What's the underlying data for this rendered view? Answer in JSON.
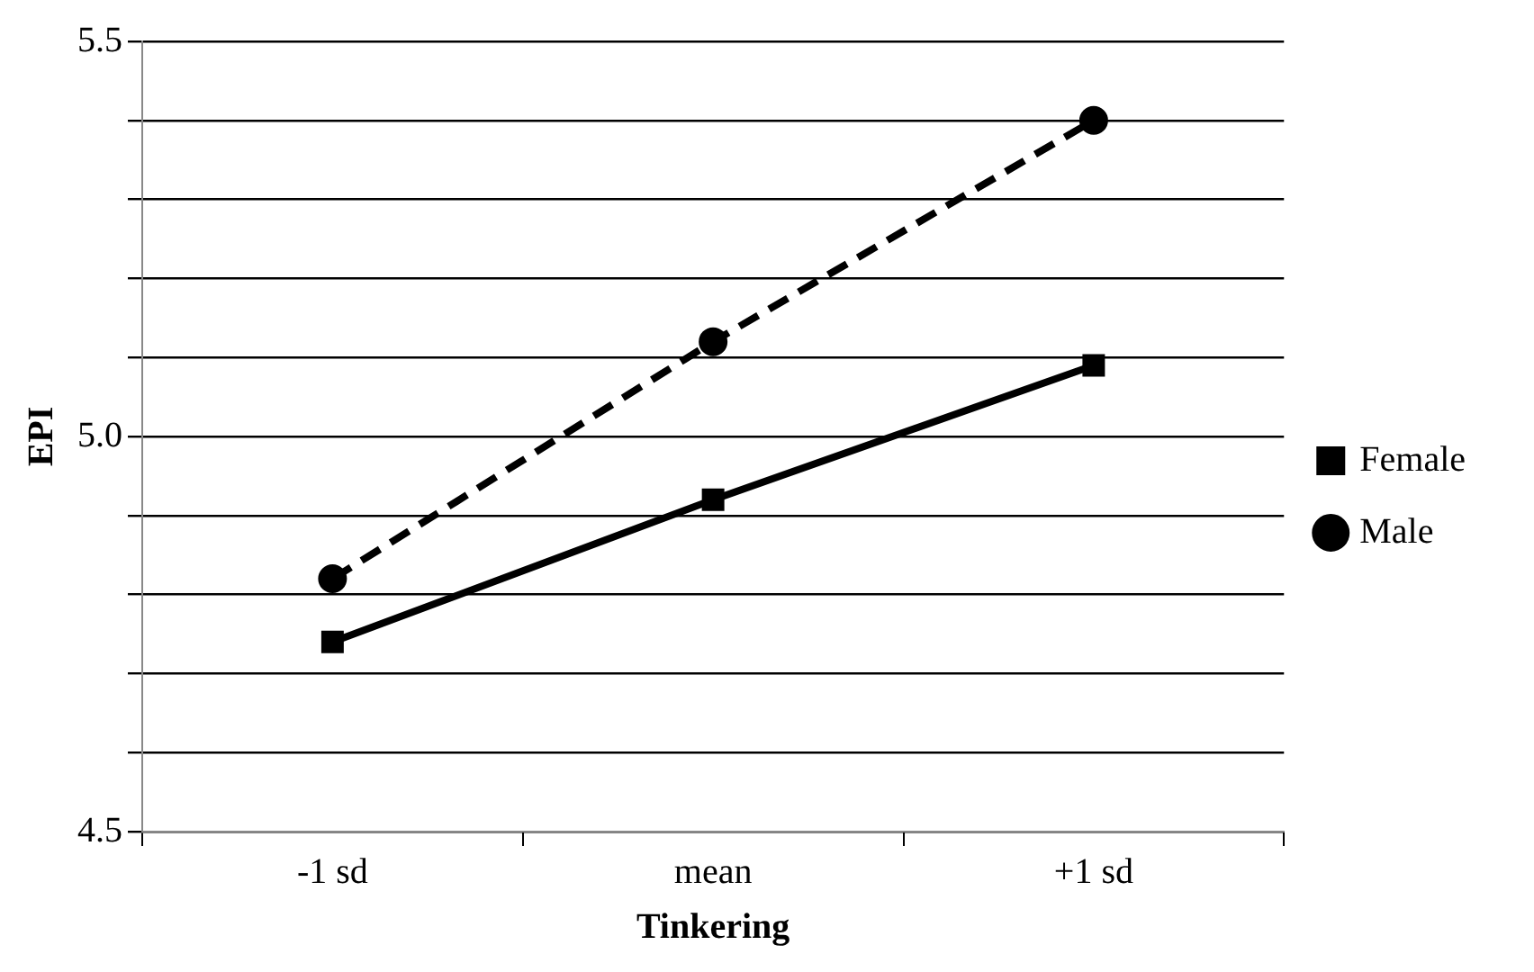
{
  "chart_data": {
    "type": "line",
    "xlabel": "Tinkering",
    "ylabel": "EPI",
    "categories": [
      "-1 sd",
      "mean",
      "+1 sd"
    ],
    "series": [
      {
        "name": "Female",
        "color": "#000000",
        "values": [
          4.74,
          4.92,
          5.09
        ],
        "marker": "square",
        "line_style": "solid"
      },
      {
        "name": "Male",
        "color": "#000000",
        "values": [
          4.82,
          5.12,
          5.4
        ],
        "marker": "circle",
        "line_style": "dashed"
      }
    ],
    "ylim": [
      4.5,
      5.5
    ],
    "yticks": [
      4.5,
      {
        "value": 4.6,
        "label": null
      },
      {
        "value": 4.7,
        "label": null
      },
      {
        "value": 4.8,
        "label": null
      },
      {
        "value": 4.9,
        "label": null
      },
      {
        "value": 5.0,
        "label": "5.0"
      },
      {
        "value": 5.1,
        "label": null
      },
      {
        "value": 5.2,
        "label": null
      },
      {
        "value": 5.3,
        "label": null
      },
      {
        "value": 5.4,
        "label": null
      },
      5.5
    ],
    "grid": "y",
    "legend": "right"
  }
}
